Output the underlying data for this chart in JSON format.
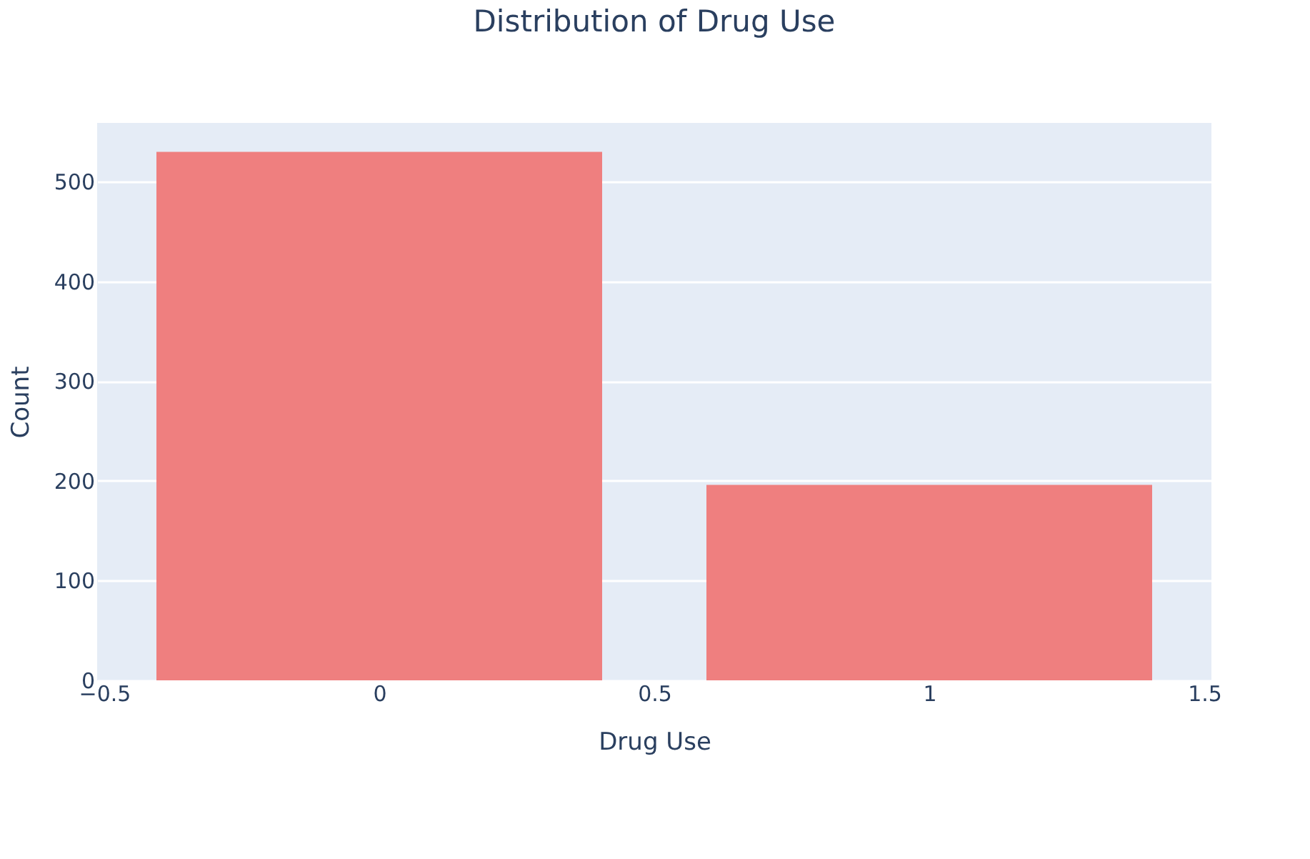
{
  "chart_data": {
    "type": "bar",
    "title": "Distribution of Drug Use",
    "xlabel": "Drug Use",
    "ylabel": "Count",
    "x": [
      0,
      1
    ],
    "series": [
      {
        "color": "#ef7f7f",
        "values": [
          530,
          196
        ]
      }
    ],
    "xlim": [
      -0.5,
      1.5
    ],
    "xticks": [
      {
        "value": -0.5,
        "label": "−0.5"
      },
      0,
      0.5,
      1,
      1.5
    ],
    "ylim": [
      0,
      559
    ],
    "yticks": [
      0,
      100,
      200,
      300,
      400,
      500
    ],
    "grid": "y"
  }
}
